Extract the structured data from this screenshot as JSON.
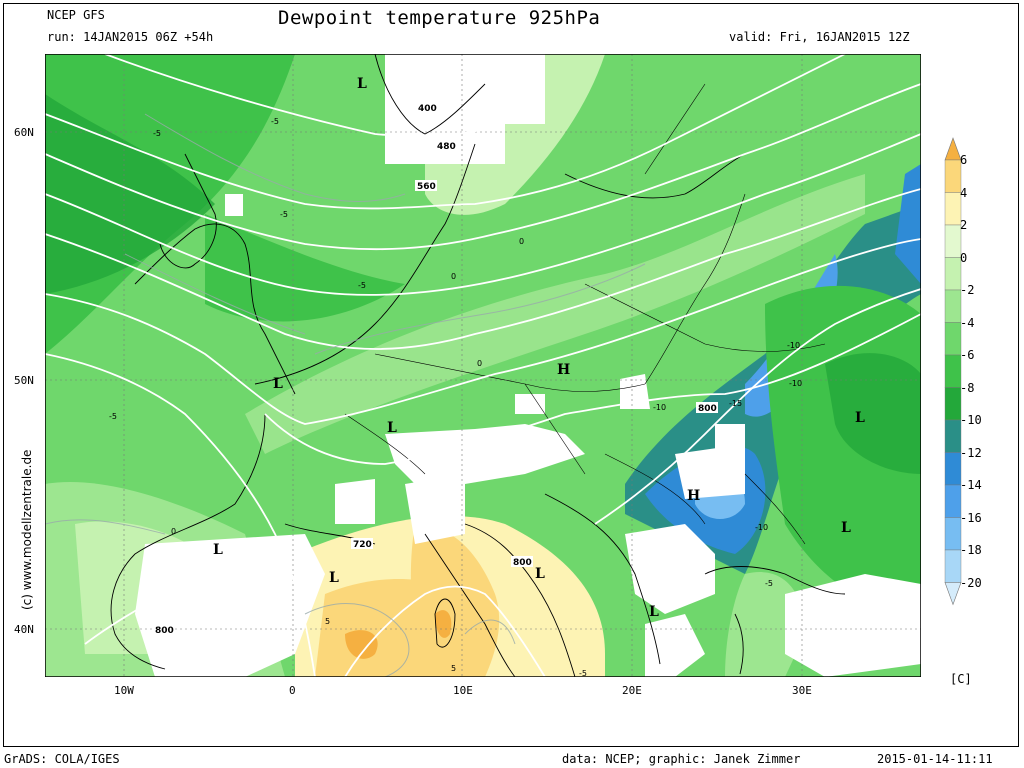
{
  "header": {
    "model": "NCEP GFS",
    "run": "run: 14JAN2015 06Z +54h",
    "title": "Dewpoint temperature 925hPa",
    "valid": "valid: Fri, 16JAN2015 12Z"
  },
  "axes": {
    "lat_labels": [
      "60N",
      "50N",
      "40N"
    ],
    "lon_labels": [
      "10W",
      "0",
      "10E",
      "20E",
      "30E"
    ]
  },
  "colorbar": {
    "labels": [
      "6",
      "4",
      "2",
      "0",
      "-2",
      "-4",
      "-6",
      "-8",
      "-10",
      "-12",
      "-14",
      "-16",
      "-18",
      "-20"
    ],
    "unit": "[C]",
    "colors": [
      "#f5b041",
      "#fbd77a",
      "#fdf3b4",
      "#e3f9cf",
      "#c5f2b0",
      "#9de690",
      "#6fd76c",
      "#3fc24a",
      "#23a83a",
      "#2a8f87",
      "#2f8bd6",
      "#4ea0ea",
      "#77bdf2",
      "#a8d7f7",
      "#d5ecfb"
    ]
  },
  "side_text": "(c)  www.modellzentrale.de",
  "map_labels": {
    "pressure": [
      "L",
      "L",
      "L",
      "L",
      "L",
      "L",
      "L",
      "L",
      "L",
      "H",
      "H"
    ],
    "heights": [
      "400",
      "480",
      "560",
      "800",
      "720",
      "800",
      "800"
    ],
    "dewpoint": [
      "-5",
      "-5",
      "-5",
      "-5",
      "-5",
      "0",
      "0",
      "0",
      "-10",
      "-10",
      "-10",
      "-15",
      "-10",
      "-5",
      "5",
      "5",
      "-5",
      "0"
    ]
  },
  "footer": {
    "left": "GrADS: COLA/IGES",
    "center": "data: NCEP; graphic: Janek Zimmer",
    "right": "2015-01-14-11:11"
  }
}
